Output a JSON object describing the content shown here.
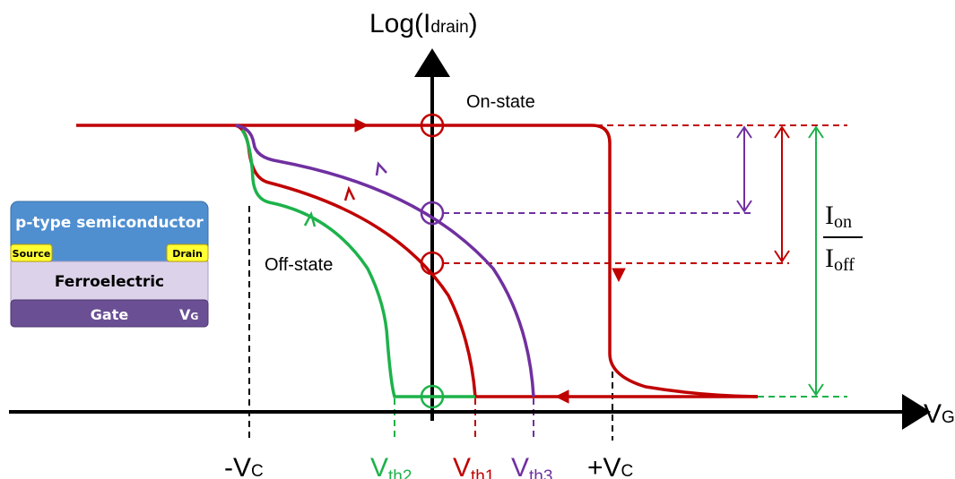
{
  "axes": {
    "y_label": {
      "main": "Log(I",
      "sub": "drain",
      "close": ")"
    },
    "x_label": {
      "main": "V",
      "sub": "G"
    }
  },
  "states": {
    "on": "On-state",
    "off": "Off-state"
  },
  "x_markers": [
    {
      "main": "-V",
      "sub": "C"
    },
    {
      "main": "V",
      "sub": "th2"
    },
    {
      "main": "V",
      "sub": "th1"
    },
    {
      "main": "V",
      "sub": "th3"
    },
    {
      "main": "+V",
      "sub": "C"
    }
  ],
  "ratio": {
    "numerator": {
      "main": "I",
      "sub": "on"
    },
    "denominator": {
      "main": "I",
      "sub": "off"
    }
  },
  "device": {
    "semiconductor": "p-type semiconductor",
    "source": "Source",
    "drain": "Drain",
    "ferroelectric": "Ferroelectric",
    "gate": "Gate",
    "gate_voltage": {
      "main": "V",
      "sub": "G"
    }
  }
}
